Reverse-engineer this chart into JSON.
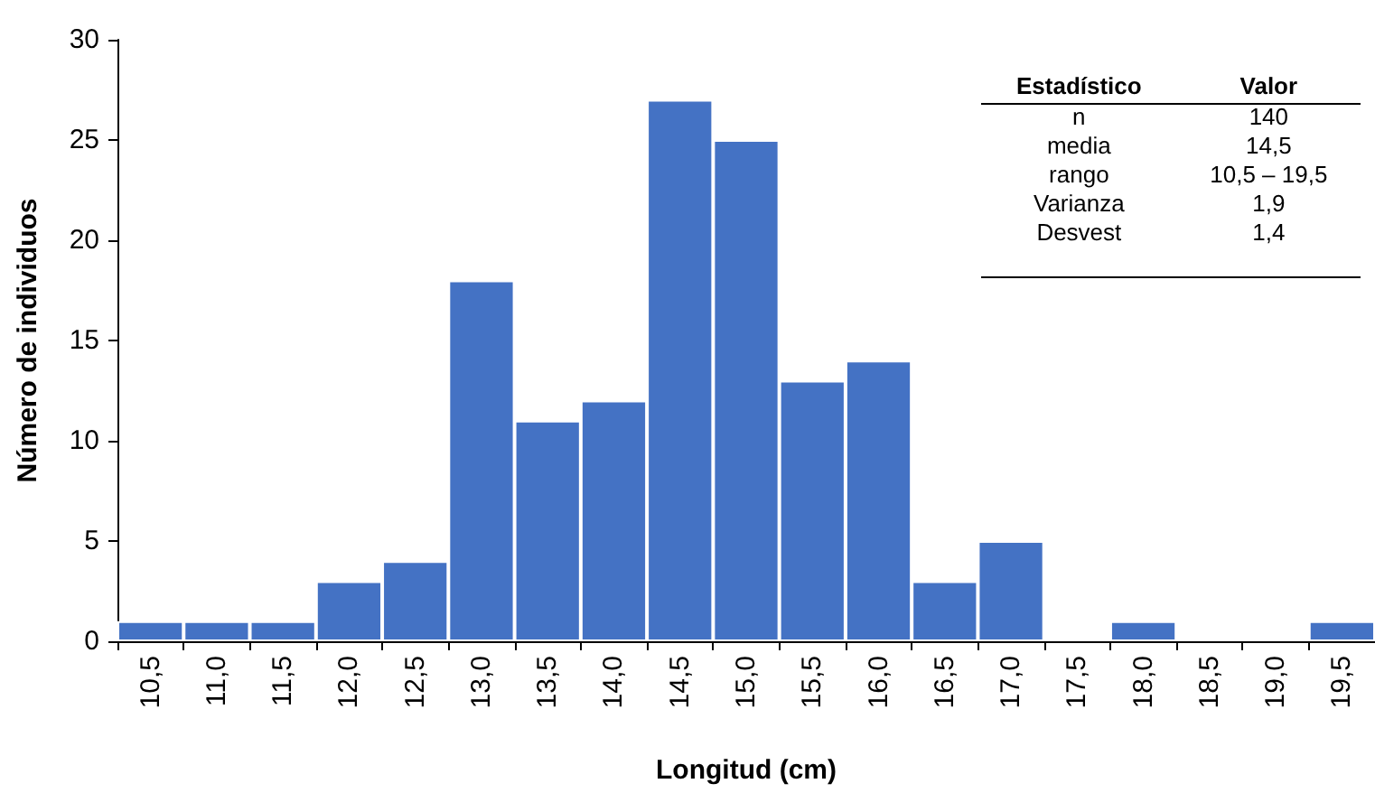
{
  "chart_data": {
    "type": "bar",
    "xlabel": "Longitud (cm)",
    "ylabel": "Número de individuos",
    "categories": [
      "10,5",
      "11,0",
      "11,5",
      "12,0",
      "12,5",
      "13,0",
      "13,5",
      "14,0",
      "14,5",
      "15,0",
      "15,5",
      "16,0",
      "16,5",
      "17,0",
      "17,5",
      "18,0",
      "18,5",
      "19,0",
      "19,5"
    ],
    "values": [
      1,
      1,
      1,
      3,
      4,
      18,
      11,
      12,
      27,
      25,
      13,
      14,
      3,
      5,
      0,
      1,
      0,
      0,
      1
    ],
    "color": "#4472c4",
    "ylim": [
      0,
      30
    ],
    "yticks": [
      0,
      5,
      10,
      15,
      20,
      25,
      30
    ],
    "grid": false,
    "annotations": [
      "Estadístico",
      "Valor",
      "n",
      "140",
      "media",
      "14,5",
      "rango",
      "10,5 – 19,5",
      "Varianza",
      "1,9",
      "Desvest",
      "1,4"
    ]
  }
}
